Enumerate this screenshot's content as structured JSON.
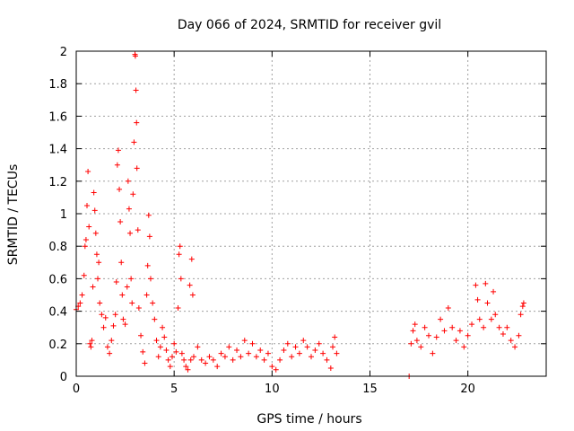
{
  "chart_data": {
    "type": "scatter",
    "title": "Day 066 of 2024, SRMTID for receiver gvil",
    "xlabel": "GPS time / hours",
    "ylabel": "SRMTID / TECUs",
    "xlim": [
      0,
      24
    ],
    "ylim": [
      0,
      2
    ],
    "xticks": [
      0,
      5,
      10,
      15,
      20
    ],
    "yticks": [
      0,
      0.2,
      0.4,
      0.6,
      0.8,
      1,
      1.2,
      1.4,
      1.6,
      1.8,
      2
    ],
    "xtick_labels": [
      "0",
      "5",
      "10",
      "15",
      "20"
    ],
    "ytick_labels": [
      "0",
      "0.2",
      "0.4",
      "0.6",
      "0.8",
      "1",
      "1.2",
      "1.4",
      "1.6",
      "1.8",
      "2"
    ],
    "grid": true,
    "marker": "+",
    "color": "#ff0000",
    "series": [
      {
        "name": "SRMTID",
        "points": [
          [
            0.0,
            0.41
          ],
          [
            0.1,
            0.43
          ],
          [
            0.2,
            0.45
          ],
          [
            0.3,
            0.5
          ],
          [
            0.4,
            0.62
          ],
          [
            0.45,
            0.8
          ],
          [
            0.5,
            0.84
          ],
          [
            0.55,
            1.05
          ],
          [
            0.6,
            1.26
          ],
          [
            0.65,
            0.92
          ],
          [
            0.7,
            0.2
          ],
          [
            0.75,
            0.18
          ],
          [
            0.8,
            0.22
          ],
          [
            0.85,
            0.55
          ],
          [
            0.9,
            1.13
          ],
          [
            0.95,
            1.02
          ],
          [
            1.0,
            0.88
          ],
          [
            1.05,
            0.75
          ],
          [
            1.1,
            0.6
          ],
          [
            1.15,
            0.7
          ],
          [
            1.2,
            0.45
          ],
          [
            1.3,
            0.38
          ],
          [
            1.4,
            0.3
          ],
          [
            1.5,
            0.36
          ],
          [
            1.6,
            0.18
          ],
          [
            1.7,
            0.14
          ],
          [
            1.8,
            0.22
          ],
          [
            1.9,
            0.31
          ],
          [
            2.0,
            0.38
          ],
          [
            2.05,
            0.58
          ],
          [
            2.1,
            1.3
          ],
          [
            2.15,
            1.39
          ],
          [
            2.2,
            1.15
          ],
          [
            2.25,
            0.95
          ],
          [
            2.3,
            0.7
          ],
          [
            2.35,
            0.5
          ],
          [
            2.4,
            0.35
          ],
          [
            2.5,
            0.32
          ],
          [
            2.6,
            0.55
          ],
          [
            2.65,
            1.2
          ],
          [
            2.7,
            1.03
          ],
          [
            2.75,
            0.88
          ],
          [
            2.8,
            0.6
          ],
          [
            2.85,
            0.45
          ],
          [
            2.9,
            1.12
          ],
          [
            2.95,
            1.44
          ],
          [
            3.0,
            1.98
          ],
          [
            3.02,
            1.97
          ],
          [
            3.05,
            1.76
          ],
          [
            3.08,
            1.56
          ],
          [
            3.1,
            1.28
          ],
          [
            3.15,
            0.9
          ],
          [
            3.2,
            0.42
          ],
          [
            3.3,
            0.25
          ],
          [
            3.4,
            0.15
          ],
          [
            3.5,
            0.08
          ],
          [
            3.6,
            0.5
          ],
          [
            3.65,
            0.68
          ],
          [
            3.7,
            0.99
          ],
          [
            3.75,
            0.86
          ],
          [
            3.8,
            0.6
          ],
          [
            3.9,
            0.45
          ],
          [
            4.0,
            0.35
          ],
          [
            4.1,
            0.22
          ],
          [
            4.2,
            0.12
          ],
          [
            4.3,
            0.18
          ],
          [
            4.4,
            0.3
          ],
          [
            4.5,
            0.24
          ],
          [
            4.6,
            0.16
          ],
          [
            4.7,
            0.1
          ],
          [
            4.8,
            0.06
          ],
          [
            4.9,
            0.12
          ],
          [
            5.0,
            0.2
          ],
          [
            5.1,
            0.15
          ],
          [
            5.2,
            0.42
          ],
          [
            5.25,
            0.75
          ],
          [
            5.3,
            0.8
          ],
          [
            5.35,
            0.6
          ],
          [
            5.4,
            0.14
          ],
          [
            5.5,
            0.1
          ],
          [
            5.6,
            0.06
          ],
          [
            5.7,
            0.04
          ],
          [
            5.8,
            0.56
          ],
          [
            5.85,
            0.1
          ],
          [
            5.9,
            0.72
          ],
          [
            5.95,
            0.5
          ],
          [
            6.0,
            0.12
          ],
          [
            6.2,
            0.18
          ],
          [
            6.4,
            0.1
          ],
          [
            6.6,
            0.08
          ],
          [
            6.8,
            0.12
          ],
          [
            7.0,
            0.1
          ],
          [
            7.2,
            0.06
          ],
          [
            7.4,
            0.14
          ],
          [
            7.6,
            0.12
          ],
          [
            7.8,
            0.18
          ],
          [
            8.0,
            0.1
          ],
          [
            8.2,
            0.16
          ],
          [
            8.4,
            0.12
          ],
          [
            8.6,
            0.22
          ],
          [
            8.8,
            0.14
          ],
          [
            9.0,
            0.2
          ],
          [
            9.2,
            0.12
          ],
          [
            9.4,
            0.16
          ],
          [
            9.6,
            0.1
          ],
          [
            9.8,
            0.14
          ],
          [
            10.0,
            0.06
          ],
          [
            10.2,
            0.04
          ],
          [
            10.4,
            0.1
          ],
          [
            10.6,
            0.16
          ],
          [
            10.8,
            0.2
          ],
          [
            11.0,
            0.12
          ],
          [
            11.2,
            0.18
          ],
          [
            11.4,
            0.14
          ],
          [
            11.6,
            0.22
          ],
          [
            11.8,
            0.18
          ],
          [
            12.0,
            0.12
          ],
          [
            12.2,
            0.16
          ],
          [
            12.4,
            0.2
          ],
          [
            12.6,
            0.14
          ],
          [
            12.8,
            0.1
          ],
          [
            13.0,
            0.05
          ],
          [
            13.1,
            0.18
          ],
          [
            13.2,
            0.24
          ],
          [
            13.3,
            0.14
          ],
          [
            17.0,
            0.0
          ],
          [
            17.1,
            0.2
          ],
          [
            17.2,
            0.28
          ],
          [
            17.3,
            0.32
          ],
          [
            17.4,
            0.22
          ],
          [
            17.6,
            0.18
          ],
          [
            17.8,
            0.3
          ],
          [
            18.0,
            0.25
          ],
          [
            18.2,
            0.14
          ],
          [
            18.4,
            0.24
          ],
          [
            18.6,
            0.35
          ],
          [
            18.8,
            0.28
          ],
          [
            19.0,
            0.42
          ],
          [
            19.2,
            0.3
          ],
          [
            19.4,
            0.22
          ],
          [
            19.6,
            0.28
          ],
          [
            19.8,
            0.18
          ],
          [
            20.0,
            0.25
          ],
          [
            20.2,
            0.32
          ],
          [
            20.4,
            0.56
          ],
          [
            20.5,
            0.47
          ],
          [
            20.6,
            0.35
          ],
          [
            20.8,
            0.3
          ],
          [
            20.9,
            0.57
          ],
          [
            21.0,
            0.45
          ],
          [
            21.2,
            0.35
          ],
          [
            21.3,
            0.52
          ],
          [
            21.4,
            0.38
          ],
          [
            21.6,
            0.3
          ],
          [
            21.8,
            0.26
          ],
          [
            22.0,
            0.3
          ],
          [
            22.2,
            0.22
          ],
          [
            22.4,
            0.18
          ],
          [
            22.6,
            0.25
          ],
          [
            22.7,
            0.38
          ],
          [
            22.8,
            0.43
          ],
          [
            22.85,
            0.45
          ]
        ]
      }
    ]
  }
}
